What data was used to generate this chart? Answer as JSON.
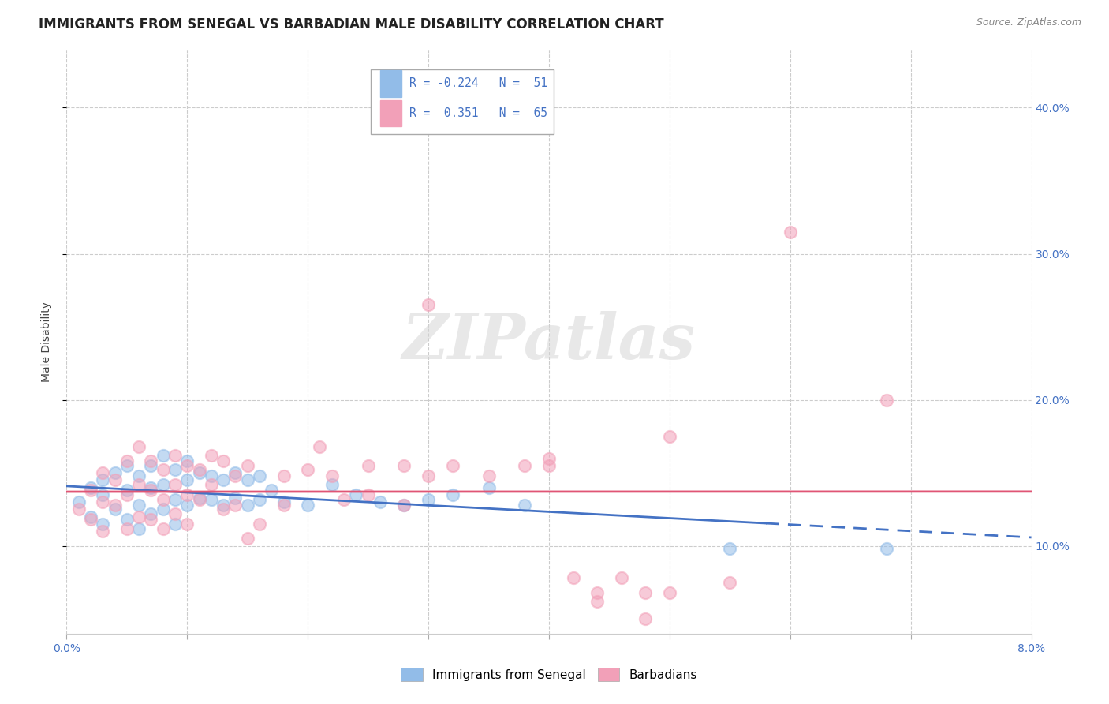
{
  "title": "IMMIGRANTS FROM SENEGAL VS BARBADIAN MALE DISABILITY CORRELATION CHART",
  "source": "Source: ZipAtlas.com",
  "ylabel": "Male Disability",
  "watermark": "ZIPatlas",
  "xlim": [
    0.0,
    0.08
  ],
  "ylim": [
    0.04,
    0.44
  ],
  "ytick_positions": [
    0.1,
    0.2,
    0.3,
    0.4
  ],
  "ytick_labels": [
    "10.0%",
    "20.0%",
    "30.0%",
    "40.0%"
  ],
  "xtick_positions": [
    0.0,
    0.01,
    0.02,
    0.03,
    0.04,
    0.05,
    0.06,
    0.07,
    0.08
  ],
  "xtick_labels": [
    "0.0%",
    "",
    "",
    "",
    "",
    "",
    "",
    "",
    "8.0%"
  ],
  "blue_color": "#92bce8",
  "pink_color": "#f2a0b8",
  "blue_line_color": "#4472c4",
  "pink_line_color": "#e05575",
  "blue_scatter": [
    [
      0.001,
      0.13
    ],
    [
      0.002,
      0.14
    ],
    [
      0.002,
      0.12
    ],
    [
      0.003,
      0.145
    ],
    [
      0.003,
      0.135
    ],
    [
      0.003,
      0.115
    ],
    [
      0.004,
      0.15
    ],
    [
      0.004,
      0.125
    ],
    [
      0.005,
      0.155
    ],
    [
      0.005,
      0.138
    ],
    [
      0.005,
      0.118
    ],
    [
      0.006,
      0.148
    ],
    [
      0.006,
      0.128
    ],
    [
      0.006,
      0.112
    ],
    [
      0.007,
      0.155
    ],
    [
      0.007,
      0.14
    ],
    [
      0.007,
      0.122
    ],
    [
      0.008,
      0.162
    ],
    [
      0.008,
      0.142
    ],
    [
      0.008,
      0.125
    ],
    [
      0.009,
      0.152
    ],
    [
      0.009,
      0.132
    ],
    [
      0.009,
      0.115
    ],
    [
      0.01,
      0.158
    ],
    [
      0.01,
      0.145
    ],
    [
      0.01,
      0.128
    ],
    [
      0.011,
      0.15
    ],
    [
      0.011,
      0.133
    ],
    [
      0.012,
      0.148
    ],
    [
      0.012,
      0.132
    ],
    [
      0.013,
      0.145
    ],
    [
      0.013,
      0.128
    ],
    [
      0.014,
      0.15
    ],
    [
      0.014,
      0.133
    ],
    [
      0.015,
      0.145
    ],
    [
      0.015,
      0.128
    ],
    [
      0.016,
      0.148
    ],
    [
      0.016,
      0.132
    ],
    [
      0.017,
      0.138
    ],
    [
      0.018,
      0.13
    ],
    [
      0.02,
      0.128
    ],
    [
      0.022,
      0.142
    ],
    [
      0.024,
      0.135
    ],
    [
      0.026,
      0.13
    ],
    [
      0.028,
      0.128
    ],
    [
      0.03,
      0.132
    ],
    [
      0.032,
      0.135
    ],
    [
      0.035,
      0.14
    ],
    [
      0.038,
      0.128
    ],
    [
      0.055,
      0.098
    ],
    [
      0.068,
      0.098
    ]
  ],
  "pink_scatter": [
    [
      0.001,
      0.125
    ],
    [
      0.002,
      0.138
    ],
    [
      0.002,
      0.118
    ],
    [
      0.003,
      0.15
    ],
    [
      0.003,
      0.13
    ],
    [
      0.003,
      0.11
    ],
    [
      0.004,
      0.145
    ],
    [
      0.004,
      0.128
    ],
    [
      0.005,
      0.158
    ],
    [
      0.005,
      0.135
    ],
    [
      0.005,
      0.112
    ],
    [
      0.006,
      0.168
    ],
    [
      0.006,
      0.142
    ],
    [
      0.006,
      0.12
    ],
    [
      0.007,
      0.158
    ],
    [
      0.007,
      0.138
    ],
    [
      0.007,
      0.118
    ],
    [
      0.008,
      0.152
    ],
    [
      0.008,
      0.132
    ],
    [
      0.008,
      0.112
    ],
    [
      0.009,
      0.162
    ],
    [
      0.009,
      0.142
    ],
    [
      0.009,
      0.122
    ],
    [
      0.01,
      0.155
    ],
    [
      0.01,
      0.135
    ],
    [
      0.01,
      0.115
    ],
    [
      0.011,
      0.152
    ],
    [
      0.011,
      0.132
    ],
    [
      0.012,
      0.162
    ],
    [
      0.012,
      0.142
    ],
    [
      0.013,
      0.158
    ],
    [
      0.013,
      0.125
    ],
    [
      0.014,
      0.148
    ],
    [
      0.014,
      0.128
    ],
    [
      0.015,
      0.155
    ],
    [
      0.015,
      0.105
    ],
    [
      0.016,
      0.115
    ],
    [
      0.018,
      0.148
    ],
    [
      0.018,
      0.128
    ],
    [
      0.02,
      0.152
    ],
    [
      0.021,
      0.168
    ],
    [
      0.022,
      0.148
    ],
    [
      0.023,
      0.132
    ],
    [
      0.025,
      0.155
    ],
    [
      0.025,
      0.135
    ],
    [
      0.028,
      0.155
    ],
    [
      0.028,
      0.128
    ],
    [
      0.03,
      0.148
    ],
    [
      0.032,
      0.155
    ],
    [
      0.035,
      0.148
    ],
    [
      0.038,
      0.155
    ],
    [
      0.04,
      0.155
    ],
    [
      0.042,
      0.078
    ],
    [
      0.044,
      0.062
    ],
    [
      0.044,
      0.068
    ],
    [
      0.046,
      0.078
    ],
    [
      0.048,
      0.068
    ],
    [
      0.048,
      0.05
    ],
    [
      0.05,
      0.068
    ],
    [
      0.055,
      0.075
    ],
    [
      0.06,
      0.315
    ],
    [
      0.068,
      0.2
    ],
    [
      0.04,
      0.16
    ],
    [
      0.03,
      0.265
    ],
    [
      0.05,
      0.175
    ]
  ],
  "title_fontsize": 12,
  "source_fontsize": 9,
  "tick_fontsize": 10,
  "ylabel_fontsize": 10
}
